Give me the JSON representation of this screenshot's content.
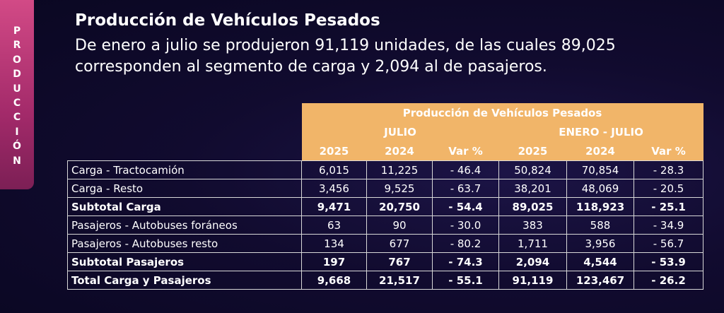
{
  "side_tab": {
    "letters": [
      "P",
      "R",
      "O",
      "D",
      "U",
      "C",
      "C",
      "I",
      "Ó",
      "N"
    ]
  },
  "header": {
    "title": "Producción de Vehículos Pesados",
    "lead": "De enero a julio se produjeron 91,119 unidades, de las cuales 89,025 corresponden al segmento de carga y 2,094 al de pasajeros."
  },
  "table": {
    "caption": "Producción de Vehículos Pesados",
    "group_julio": "JULIO",
    "group_enero_julio": "ENERO - JULIO",
    "col_headers": [
      "2025",
      "2024",
      "Var %",
      "2025",
      "2024",
      "Var %"
    ],
    "rows": [
      {
        "label": "Carga - Tractocamión",
        "cells": [
          "6,015",
          "11,225",
          "- 46.4",
          "50,824",
          "70,854",
          "- 28.3"
        ]
      },
      {
        "label": "Carga - Resto",
        "cells": [
          "3,456",
          "9,525",
          "- 63.7",
          "38,201",
          "48,069",
          "- 20.5"
        ]
      },
      {
        "label": "Subtotal Carga",
        "cells": [
          "9,471",
          "20,750",
          "- 54.4",
          "89,025",
          "118,923",
          "- 25.1"
        ]
      },
      {
        "label": "Pasajeros - Autobuses foráneos",
        "cells": [
          "63",
          "90",
          "- 30.0",
          "383",
          "588",
          "- 34.9"
        ]
      },
      {
        "label": "Pasajeros - Autobuses resto",
        "cells": [
          "134",
          "677",
          "- 80.2",
          "1,711",
          "3,956",
          "- 56.7"
        ]
      },
      {
        "label": "Subtotal Pasajeros",
        "cells": [
          "197",
          "767",
          "- 74.3",
          "2,094",
          "4,544",
          "- 53.9"
        ]
      },
      {
        "label": "Total Carga y Pasajeros",
        "cells": [
          "9,668",
          "21,517",
          "- 55.1",
          "91,119",
          "123,467",
          "- 26.2"
        ]
      }
    ]
  },
  "colors": {
    "header_fill": "#f1b569",
    "side_tab": "#b8326f",
    "background": "#110b2f"
  }
}
